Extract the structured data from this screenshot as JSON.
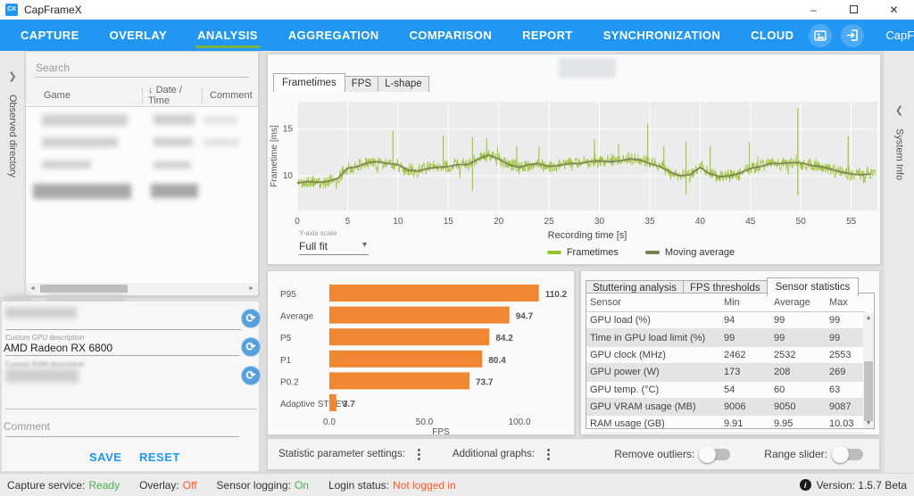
{
  "titlebar": {
    "app_title": "CapFrameX",
    "logo_text": "CX",
    "minimize_glyph": "–",
    "close_glyph": "✕"
  },
  "nav": {
    "items": [
      "CAPTURE",
      "OVERLAY",
      "ANALYSIS",
      "AGGREGATION",
      "COMPARISON",
      "REPORT",
      "SYNCHRONIZATION",
      "CLOUD"
    ],
    "active": "ANALYSIS",
    "website": "CapFrameX.com",
    "menu_glyph": "⋮"
  },
  "left_panel": {
    "rail_label": "Observed directory",
    "rail_collapse_glyph": "❯",
    "search_placeholder": "Search",
    "sort_glyph": "↓",
    "columns": {
      "game": "Game",
      "datetime": "Date / Time",
      "comment": "Comment"
    }
  },
  "descriptions": {
    "gpu_label": "Custom GPU description",
    "gpu_value": "AMD Radeon RX 6800",
    "ram_label": "Custom RAM description",
    "comment_placeholder": "Comment",
    "save_label": "SAVE",
    "reset_label": "RESET",
    "refresh_glyph": "⟳"
  },
  "analysis": {
    "tabs": [
      "Frametimes",
      "FPS",
      "L-shape"
    ],
    "active_tab": "Frametimes",
    "yaxis_scale_label": "Y-axis scale",
    "yaxis_scale_value": "Full fit",
    "dropdown_glyph": "▾"
  },
  "chart_data": [
    {
      "type": "line",
      "title": "Frametimes",
      "xlabel": "Recording time [s]",
      "ylabel": "Frametime [ms]",
      "xlim": [
        0,
        57.6
      ],
      "ylim": [
        6.3,
        17.9
      ],
      "xticks": [
        0,
        5,
        10,
        15,
        20,
        25,
        30,
        35,
        40,
        45,
        50,
        55
      ],
      "yticks": [
        10,
        15
      ],
      "grid": true,
      "legend_position": "bottom",
      "plot_bg": "#ececec",
      "series": [
        {
          "name": "Frametimes",
          "color": "#99c431",
          "style": "noisy-line",
          "noise_amplitude": 0.55,
          "spikes": [
            {
              "t": 9.5,
              "v": 14.8
            },
            {
              "t": 14.5,
              "v": 14.3
            },
            {
              "t": 17.4,
              "v": 14.1,
              "low": 8.4
            },
            {
              "t": 18.8,
              "v": 14.0
            },
            {
              "t": 21.8,
              "v": 13.2
            },
            {
              "t": 24.0,
              "v": 13.1
            },
            {
              "t": 29.5,
              "v": 13.9
            },
            {
              "t": 31.9,
              "v": 13.4
            },
            {
              "t": 34.8,
              "v": 15.6
            },
            {
              "t": 36.4,
              "v": 13.2
            },
            {
              "t": 38.6,
              "v": 13.6,
              "low": 8.0
            },
            {
              "t": 41.0,
              "v": 13.2
            },
            {
              "t": 44.9,
              "v": 13.6
            },
            {
              "t": 49.7,
              "v": 17.2,
              "low": 7.9
            },
            {
              "t": 54.7,
              "v": 14.2
            }
          ]
        },
        {
          "name": "Moving average",
          "color": "#7e7f55",
          "style": "smooth-line",
          "x_step_s": 1,
          "values": [
            9.2,
            9.4,
            9.3,
            9.4,
            9.7,
            10.8,
            11.0,
            11.4,
            11.5,
            11.3,
            11.2,
            10.6,
            10.5,
            10.8,
            10.9,
            11.0,
            11.2,
            11.2,
            11.8,
            12.2,
            11.8,
            11.2,
            10.9,
            11.2,
            11.3,
            11.0,
            11.1,
            11.3,
            11.3,
            11.5,
            11.6,
            11.5,
            11.6,
            11.8,
            11.7,
            11.3,
            11.0,
            10.4,
            10.0,
            10.1,
            10.9,
            10.2,
            9.9,
            10.0,
            10.3,
            10.8,
            11.0,
            11.3,
            11.3,
            11.4,
            11.4,
            11.1,
            11.0,
            10.7,
            10.4,
            10.2,
            10.1,
            10.2
          ]
        }
      ]
    },
    {
      "type": "bar",
      "orientation": "horizontal",
      "categories": [
        "P95",
        "Average",
        "P5",
        "P1",
        "P0.2",
        "Adaptive STDEV"
      ],
      "values": [
        110.2,
        94.7,
        84.2,
        80.4,
        73.7,
        3.7
      ],
      "value_labels": [
        "110.2",
        "94.7",
        "84.2",
        "80.4",
        "73.7",
        "3.7"
      ],
      "xlabel": "FPS",
      "xticks": [
        0,
        50,
        100
      ],
      "xtick_labels": [
        "0.0",
        "50.0",
        "100.0"
      ],
      "xlim": [
        0,
        115
      ],
      "bar_color": "#ef8733"
    }
  ],
  "stats_panel": {
    "tabs": [
      "Stuttering analysis",
      "FPS thresholds",
      "Sensor statistics"
    ],
    "active_tab": "Sensor statistics",
    "table": {
      "headers": [
        "Sensor",
        "Min",
        "Average",
        "Max"
      ],
      "rows": [
        [
          "GPU load (%)",
          "94",
          "99",
          "99"
        ],
        [
          "Time in GPU load limit (%)",
          "99",
          "99",
          "99"
        ],
        [
          "GPU clock (MHz)",
          "2462",
          "2532",
          "2553"
        ],
        [
          "GPU power (W)",
          "173",
          "208",
          "269"
        ],
        [
          "GPU temp. (°C)",
          "54",
          "60",
          "63"
        ],
        [
          "GPU VRAM usage (MB)",
          "9006",
          "9050",
          "9087"
        ],
        [
          "RAM usage (GB)",
          "9.91",
          "9.95",
          "10.03"
        ]
      ]
    }
  },
  "footer_controls": {
    "statistic_settings_label": "Statistic parameter settings:",
    "additional_graphs_label": "Additional graphs:",
    "remove_outliers_label": "Remove outliers:",
    "range_slider_label": "Range slider:",
    "kebab_glyph": "⋮",
    "remove_outliers_on": false,
    "range_slider_on": false
  },
  "right_panel": {
    "rail_label": "System Info",
    "rail_collapse_glyph": "❮"
  },
  "statusbar": {
    "items": [
      {
        "label": "Capture service:",
        "value": "Ready",
        "value_color": "#4caf50"
      },
      {
        "label": "Overlay:",
        "value": "Off",
        "value_color": "#ff5722"
      },
      {
        "label": "Sensor logging:",
        "value": "On",
        "value_color": "#4caf50"
      },
      {
        "label": "Login status:",
        "value": "Not logged in",
        "value_color": "#ff5722"
      }
    ],
    "version": "Version: 1.5.7 Beta",
    "info_glyph": "i"
  },
  "colors": {
    "nav_bg": "#2196f3",
    "accent_green": "#7cb342",
    "link_blue": "#2196f3",
    "bar_orange": "#ef8733",
    "frametimes_green": "#99c431",
    "moving_average": "#7e7f55",
    "status_ok": "#4caf50",
    "status_warn": "#ff5722"
  }
}
